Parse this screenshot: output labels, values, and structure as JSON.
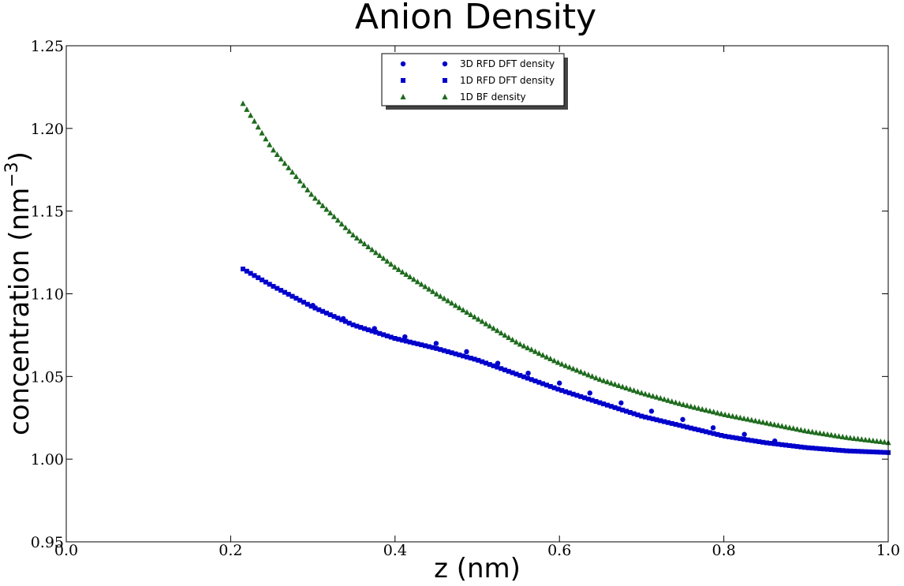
{
  "chart_data": {
    "type": "scatter",
    "title": "Anion Density",
    "xlabel": "z (nm)",
    "ylabel": {
      "base": "concentration (nm",
      "sup": "−3",
      "close": ")"
    },
    "xlim": [
      0.0,
      1.0
    ],
    "ylim": [
      0.95,
      1.25
    ],
    "xticks": [
      "0.0",
      "0.2",
      "0.4",
      "0.6",
      "0.8",
      "1.0"
    ],
    "yticks": [
      "0.95",
      "1.00",
      "1.05",
      "1.10",
      "1.15",
      "1.20",
      "1.25"
    ],
    "grid": false,
    "legend_position": "top-center",
    "series": [
      {
        "name": "3D RFD DFT density",
        "marker": "circle",
        "color": "#0000cc",
        "x": [
          0.3,
          0.337,
          0.375,
          0.412,
          0.45,
          0.487,
          0.525,
          0.562,
          0.6,
          0.637,
          0.675,
          0.712,
          0.75,
          0.787,
          0.825,
          0.862
        ],
        "y": [
          1.093,
          1.085,
          1.079,
          1.074,
          1.07,
          1.065,
          1.058,
          1.052,
          1.046,
          1.04,
          1.034,
          1.029,
          1.024,
          1.019,
          1.015,
          1.011
        ]
      },
      {
        "name": "1D RFD DFT density",
        "marker": "square",
        "color": "#0000cc",
        "x": [
          0.215,
          0.25,
          0.3,
          0.35,
          0.4,
          0.45,
          0.5,
          0.55,
          0.6,
          0.65,
          0.7,
          0.75,
          0.8,
          0.85,
          0.9,
          0.95,
          1.0
        ],
        "y": [
          1.115,
          1.105,
          1.092,
          1.081,
          1.073,
          1.067,
          1.06,
          1.051,
          1.042,
          1.034,
          1.026,
          1.02,
          1.014,
          1.01,
          1.007,
          1.005,
          1.004
        ]
      },
      {
        "name": "1D BF density",
        "marker": "triangle",
        "color": "#1e6b1e",
        "x": [
          0.215,
          0.25,
          0.3,
          0.35,
          0.4,
          0.45,
          0.5,
          0.55,
          0.6,
          0.65,
          0.7,
          0.75,
          0.8,
          0.85,
          0.9,
          0.95,
          1.0
        ],
        "y": [
          1.215,
          1.188,
          1.159,
          1.135,
          1.116,
          1.1,
          1.085,
          1.07,
          1.058,
          1.048,
          1.04,
          1.033,
          1.027,
          1.022,
          1.017,
          1.013,
          1.01
        ]
      }
    ]
  }
}
